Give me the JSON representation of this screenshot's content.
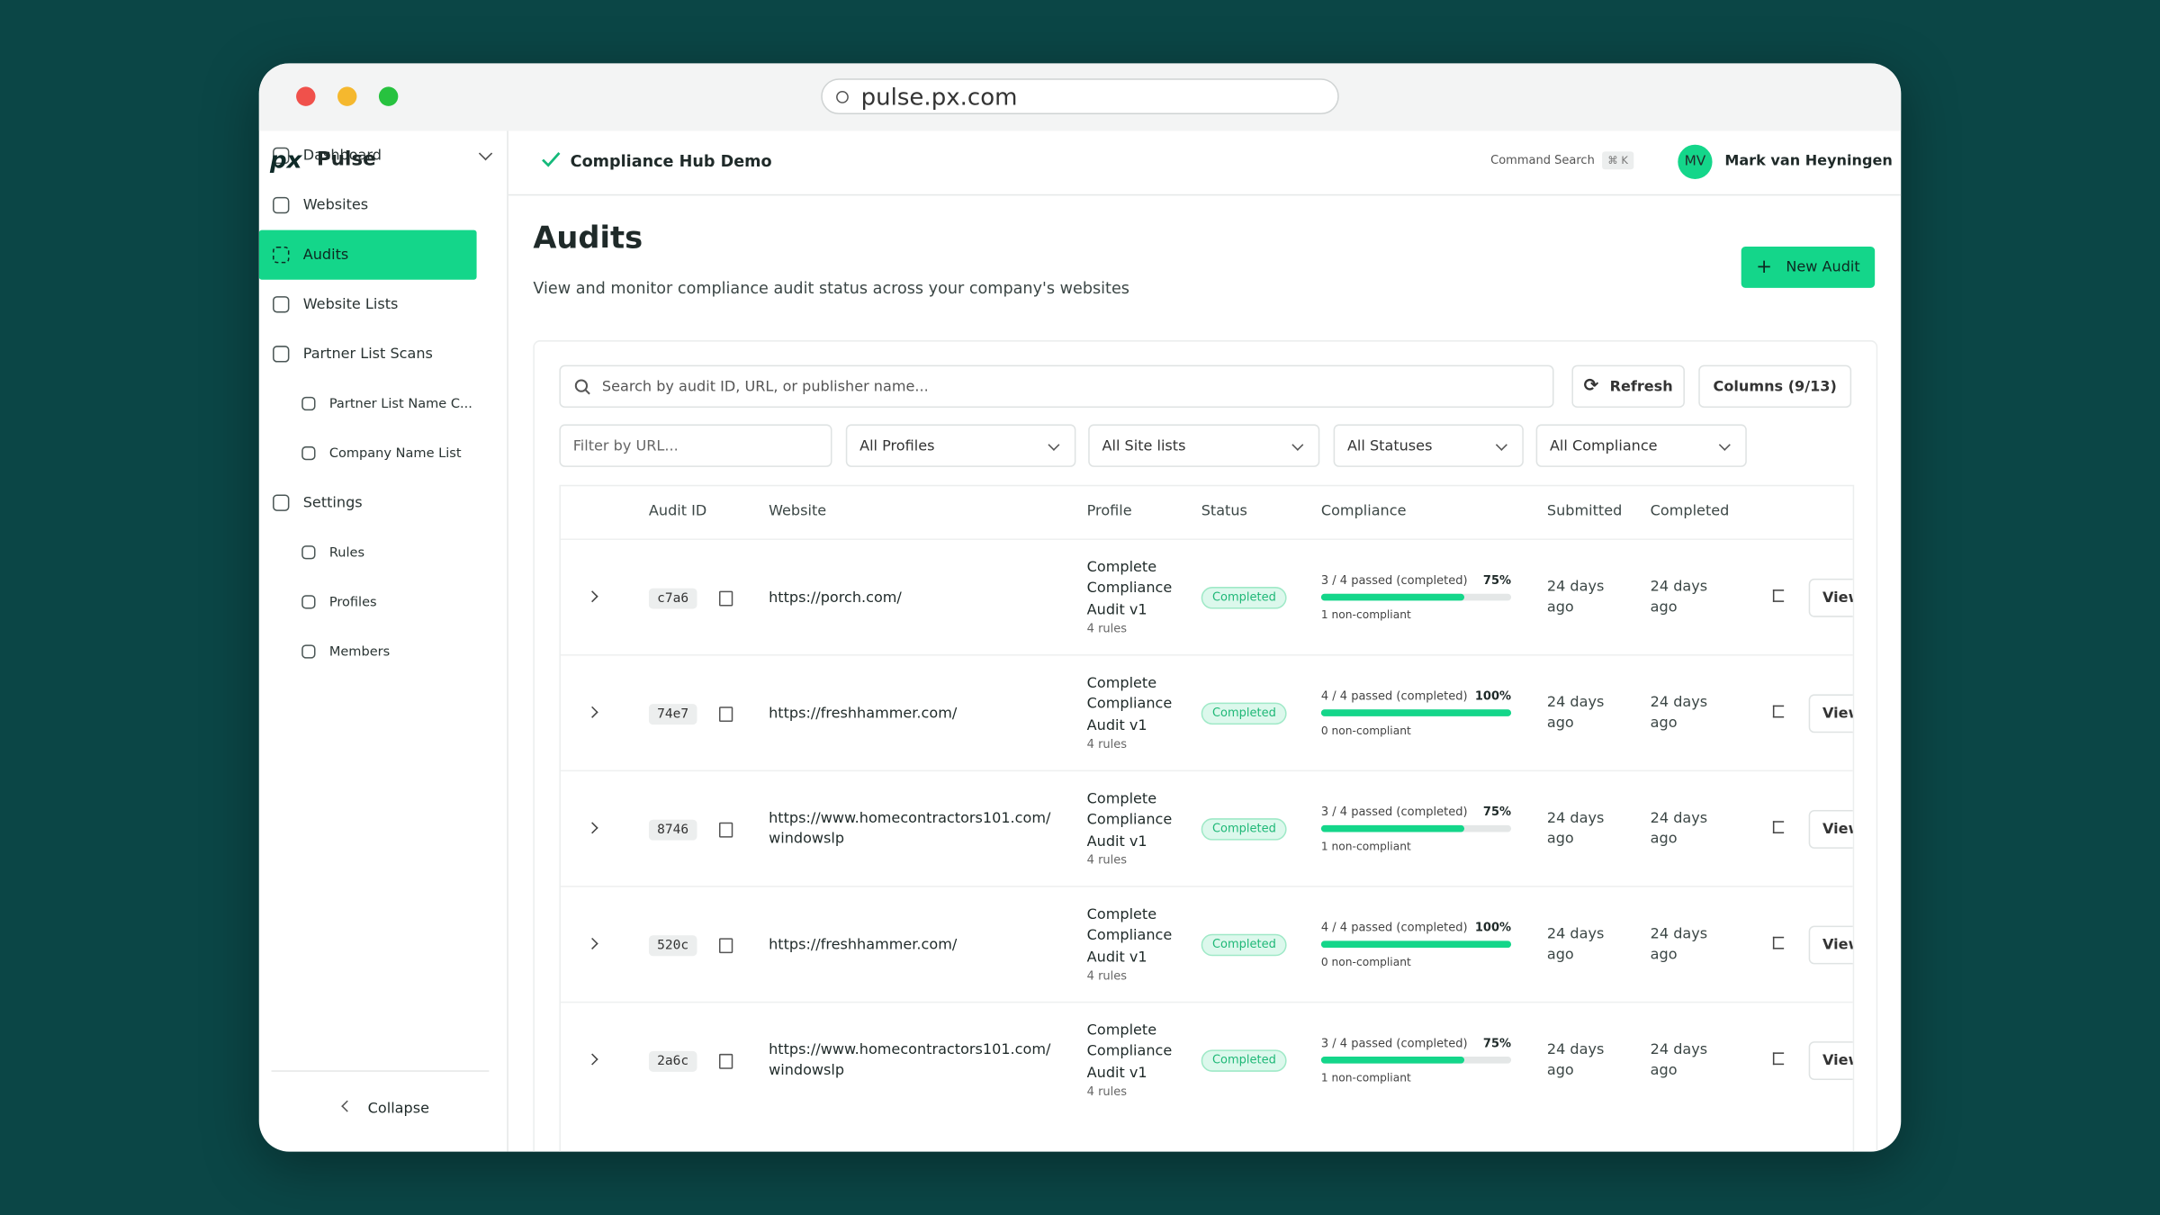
{
  "browser": {
    "url": "pulse.px.com"
  },
  "sidebar": {
    "logo": "px",
    "brand": "Pulse",
    "nav": [
      "Dashboard",
      "Websites",
      "Audits",
      "Website Lists",
      "Partner List Scans",
      "Partner List Name C...",
      "Company Name List",
      "Settings",
      "Rules",
      "Profiles",
      "Members"
    ],
    "collapse": "Collapse"
  },
  "header": {
    "workspace": "Compliance Hub Demo",
    "command_search": "Command Search",
    "shortcut": "⌘ K",
    "avatar": "MV",
    "user": "Mark van Heyningen"
  },
  "page": {
    "title": "Audits",
    "subtitle": "View and monitor compliance audit status across your company's websites",
    "new_button": "New Audit"
  },
  "toolbar": {
    "search_placeholder": "Search by audit ID, URL, or publisher name...",
    "refresh": "Refresh",
    "columns": "Columns (9/13)"
  },
  "filters": {
    "url_placeholder": "Filter by URL...",
    "selects": [
      "All Profiles",
      "All Site lists",
      "All Statuses",
      "All Compliance"
    ]
  },
  "table": {
    "columns": [
      "Audit ID",
      "Website",
      "Profile",
      "Status",
      "Compliance",
      "Submitted",
      "Completed"
    ],
    "rows": [
      {
        "id": "c7a6",
        "website": [
          "https://porch.com/"
        ],
        "profile": "Complete Compliance Audit v1",
        "rules": "4 rules",
        "status": "Completed",
        "compliance": "3 / 4 passed (completed)",
        "percent": 75,
        "percent_label": "75%",
        "note": "1 non-compliant",
        "submitted": "24 days ago",
        "completed": "24 days ago",
        "action": "View"
      },
      {
        "id": "74e7",
        "website": [
          "https://freshhammer.com/"
        ],
        "profile": "Complete Compliance Audit v1",
        "rules": "4 rules",
        "status": "Completed",
        "compliance": "4 / 4 passed (completed)",
        "percent": 100,
        "percent_label": "100%",
        "note": "0 non-compliant",
        "submitted": "24 days ago",
        "completed": "24 days ago",
        "action": "View"
      },
      {
        "id": "8746",
        "website": [
          "https://www.homecontractors101.com/",
          "windowslp"
        ],
        "profile": "Complete Compliance Audit v1",
        "rules": "4 rules",
        "status": "Completed",
        "compliance": "3 / 4 passed (completed)",
        "percent": 75,
        "percent_label": "75%",
        "note": "1 non-compliant",
        "submitted": "24 days ago",
        "completed": "24 days ago",
        "action": "View"
      },
      {
        "id": "520c",
        "website": [
          "https://freshhammer.com/"
        ],
        "profile": "Complete Compliance Audit v1",
        "rules": "4 rules",
        "status": "Completed",
        "compliance": "4 / 4 passed (completed)",
        "percent": 100,
        "percent_label": "100%",
        "note": "0 non-compliant",
        "submitted": "24 days ago",
        "completed": "24 days ago",
        "action": "View"
      },
      {
        "id": "2a6c",
        "website": [
          "https://www.homecontractors101.com/",
          "windowslp"
        ],
        "profile": "Complete Compliance Audit v1",
        "rules": "4 rules",
        "status": "Completed",
        "compliance": "3 / 4 passed (completed)",
        "percent": 75,
        "percent_label": "75%",
        "note": "1 non-compliant",
        "submitted": "24 days ago",
        "completed": "24 days ago",
        "action": "View"
      }
    ]
  }
}
